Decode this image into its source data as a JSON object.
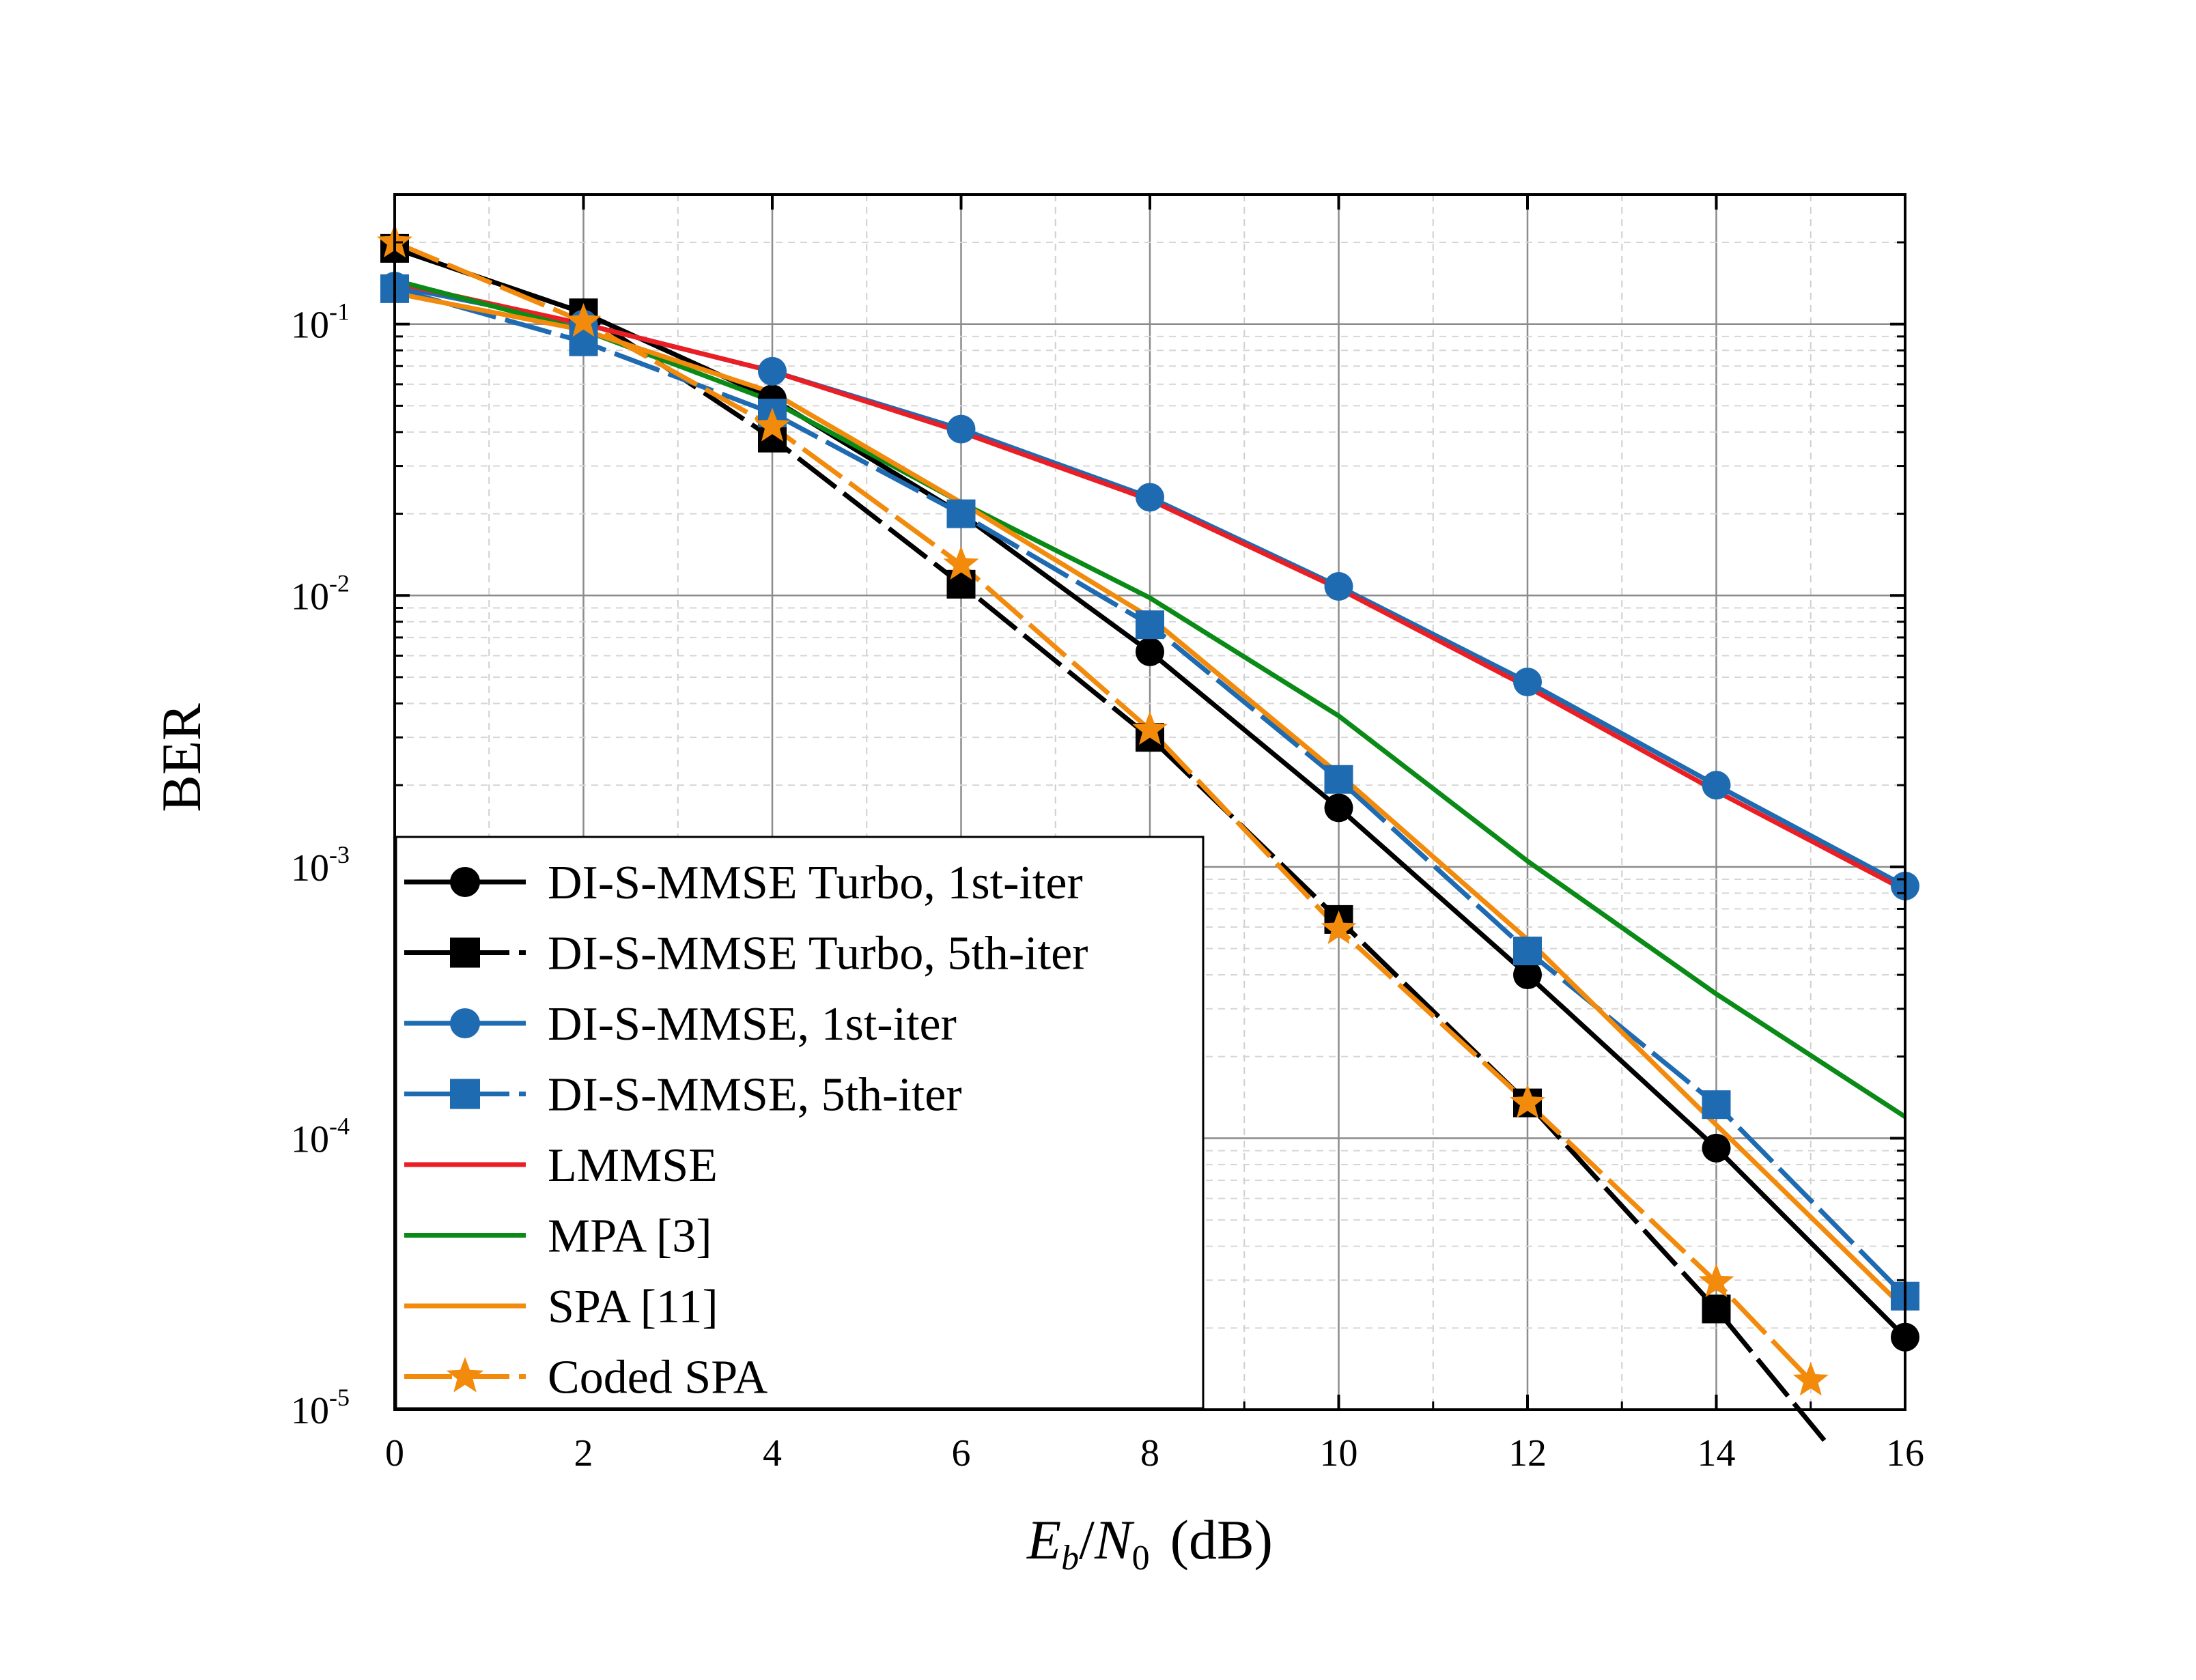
{
  "chart_data": {
    "type": "line",
    "title": "",
    "xlabel": {
      "E": "E",
      "b": "b",
      "slash": "/",
      "N": "N",
      "zero": "0",
      "unit": "(dB)"
    },
    "ylabel": "BER",
    "xlim": [
      0,
      16
    ],
    "ylim": [
      1e-05,
      0.3
    ],
    "yscale": "log",
    "grid": true,
    "legend_position": "lower-left",
    "x_ticks": [
      0,
      2,
      4,
      6,
      8,
      10,
      12,
      14,
      16
    ],
    "x_tick_labels": [
      "0",
      "2",
      "4",
      "6",
      "8",
      "10",
      "12",
      "14",
      "16"
    ],
    "y_ticks": [
      {
        "value": 0.1,
        "base": "10",
        "exp": "-1"
      },
      {
        "value": 0.01,
        "base": "10",
        "exp": "-2"
      },
      {
        "value": 0.001,
        "base": "10",
        "exp": "-3"
      },
      {
        "value": 0.0001,
        "base": "10",
        "exp": "-4"
      },
      {
        "value": 1e-05,
        "base": "10",
        "exp": "-5"
      }
    ],
    "series": [
      {
        "name": "DI-S-MMSE Turbo, 1st-iter",
        "color": "#000000",
        "marker": "circle",
        "dash": "solid",
        "x": [
          0,
          2,
          4,
          6,
          8,
          10,
          12,
          14,
          16
        ],
        "y": [
          0.19,
          0.11,
          0.053,
          0.02,
          0.0062,
          0.00165,
          0.0004,
          9.2e-05,
          1.85e-05
        ]
      },
      {
        "name": "DI-S-MMSE Turbo, 5th-iter",
        "color": "#000000",
        "marker": "square",
        "dash": "dashed",
        "x": [
          0,
          2,
          4,
          6,
          8,
          10,
          12,
          14,
          15.2
        ],
        "y": [
          0.19,
          0.11,
          0.038,
          0.011,
          0.003,
          0.00064,
          0.000135,
          2.35e-05,
          7.3e-06
        ]
      },
      {
        "name": "DI-S-MMSE, 1st-iter",
        "color": "#1f6bb1",
        "marker": "circle",
        "dash": "solid",
        "x": [
          0,
          2,
          4,
          6,
          8,
          10,
          12,
          14,
          16
        ],
        "y": [
          0.138,
          0.1,
          0.067,
          0.041,
          0.023,
          0.0108,
          0.0048,
          0.002,
          0.00085
        ]
      },
      {
        "name": "DI-S-MMSE, 5th-iter",
        "color": "#1f6bb1",
        "marker": "square",
        "dash": "dashed",
        "x": [
          0,
          2,
          4,
          6,
          8,
          10,
          12,
          14,
          16
        ],
        "y": [
          0.135,
          0.086,
          0.047,
          0.02,
          0.0078,
          0.0021,
          0.00049,
          0.000133,
          2.62e-05
        ]
      },
      {
        "name": "LMMSE",
        "color": "#ea1f25",
        "marker": "none",
        "dash": "solid",
        "x": [
          0,
          2,
          4,
          6,
          8,
          10,
          12,
          14,
          16
        ],
        "y": [
          0.142,
          0.1,
          0.067,
          0.04,
          0.0225,
          0.0106,
          0.0046,
          0.0019,
          0.00082
        ]
      },
      {
        "name": "MPA [3]",
        "color": "#0a8a16",
        "marker": "none",
        "dash": "solid",
        "x": [
          0,
          2,
          4,
          6,
          8,
          10,
          12,
          14,
          16
        ],
        "y": [
          0.145,
          0.095,
          0.052,
          0.022,
          0.0098,
          0.0036,
          0.00105,
          0.00034,
          0.00012
        ]
      },
      {
        "name": "SPA [11]",
        "color": "#f28a0c",
        "marker": "none",
        "dash": "solid",
        "x": [
          0,
          2,
          4,
          6,
          8,
          10,
          12,
          14,
          16
        ],
        "y": [
          0.13,
          0.095,
          0.056,
          0.022,
          0.0083,
          0.0022,
          0.00054,
          0.000112,
          2.35e-05
        ]
      },
      {
        "name": "Coded SPA",
        "color": "#f28a0c",
        "marker": "star",
        "dash": "dashed",
        "x": [
          0,
          2,
          4,
          6,
          8,
          10,
          12,
          14,
          15
        ],
        "y": [
          0.2,
          0.102,
          0.042,
          0.013,
          0.0032,
          0.00059,
          0.000135,
          2.95e-05,
          1.28e-05
        ]
      }
    ]
  }
}
